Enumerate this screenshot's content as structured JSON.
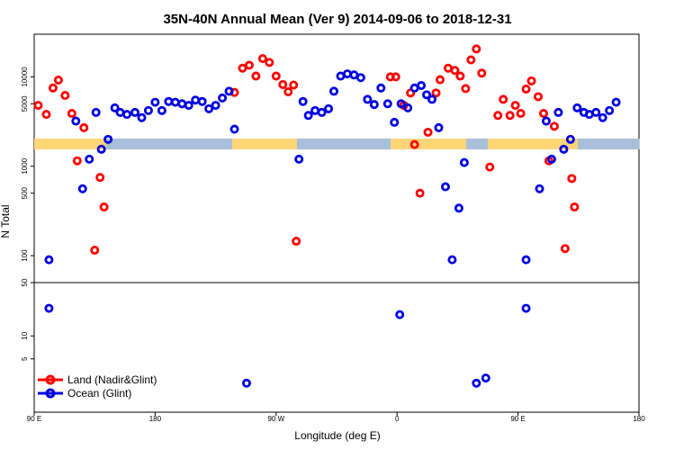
{
  "chart_data": {
    "type": "scatter",
    "title": "35N-40N Annual Mean (Ver 9)   2014-09-06 to 2018-12-31",
    "xlabel": "Longitude (deg E)",
    "ylabel": "N Total",
    "x_ticks": [
      {
        "value": 90,
        "label": "90 E"
      },
      {
        "value": 180,
        "label": "180"
      },
      {
        "value": 270,
        "label": "90 W"
      },
      {
        "value": 360,
        "label": "0"
      },
      {
        "value": 450,
        "label": "90 E"
      },
      {
        "value": 540,
        "label": "180"
      }
    ],
    "xlim": [
      90,
      540
    ],
    "y_ticks_upper": [
      "100",
      "500",
      "1000",
      "5000",
      "10000"
    ],
    "y_ticks_lower": [
      "5",
      "10",
      "50"
    ],
    "ylim_upper": [
      50,
      30000
    ],
    "ylim_lower": [
      1,
      50
    ],
    "land_mask_colors": {
      "land": "#FFD57A",
      "ocean": "#A8BFD9"
    },
    "legend": [
      {
        "name": "Land (Nadir&Glint)",
        "color": "#FF0000"
      },
      {
        "name": "Ocean (Glint)",
        "color": "#0000E0"
      }
    ],
    "series": [
      {
        "name": "Land (Nadir&Glint)",
        "color": "#FF0000",
        "points": [
          [
            93,
            4800
          ],
          [
            99,
            3800
          ],
          [
            104,
            7500
          ],
          [
            108,
            9200
          ],
          [
            113,
            6200
          ],
          [
            118,
            3900
          ],
          [
            122,
            1150
          ],
          [
            127,
            2700
          ],
          [
            135,
            115
          ],
          [
            139,
            750
          ],
          [
            142,
            350
          ],
          [
            239,
            6700
          ],
          [
            245,
            12500
          ],
          [
            250,
            13500
          ],
          [
            255,
            10200
          ],
          [
            260,
            16000
          ],
          [
            265,
            14500
          ],
          [
            270,
            10200
          ],
          [
            275,
            8200
          ],
          [
            279,
            6800
          ],
          [
            283,
            8100
          ],
          [
            285,
            145
          ],
          [
            355,
            10000
          ],
          [
            359,
            10000
          ],
          [
            365,
            4800
          ],
          [
            370,
            6600
          ],
          [
            373,
            1750
          ],
          [
            377,
            500
          ],
          [
            383,
            2400
          ],
          [
            389,
            6600
          ],
          [
            392,
            9300
          ],
          [
            398,
            12500
          ],
          [
            403,
            11800
          ],
          [
            407,
            10200
          ],
          [
            411,
            7400
          ],
          [
            415,
            15500
          ],
          [
            419,
            20500
          ],
          [
            423,
            11000
          ],
          [
            429,
            980
          ],
          [
            435,
            3700
          ],
          [
            439,
            5600
          ],
          [
            444,
            3700
          ],
          [
            448,
            4800
          ],
          [
            452,
            3900
          ],
          [
            456,
            7300
          ],
          [
            460,
            9000
          ],
          [
            465,
            6000
          ],
          [
            469,
            3900
          ],
          [
            473,
            1150
          ],
          [
            477,
            2800
          ],
          [
            485,
            120
          ],
          [
            490,
            730
          ],
          [
            492,
            350
          ]
        ]
      },
      {
        "name": "Ocean (Glint)",
        "color": "#0000E0",
        "points": [
          [
            101,
            90
          ],
          [
            121,
            3200
          ],
          [
            126,
            560
          ],
          [
            131,
            1200
          ],
          [
            136,
            4000
          ],
          [
            140,
            1550
          ],
          [
            145,
            2000
          ],
          [
            150,
            4500
          ],
          [
            154,
            4000
          ],
          [
            159,
            3800
          ],
          [
            165,
            4000
          ],
          [
            170,
            3500
          ],
          [
            175,
            4200
          ],
          [
            180,
            5200
          ],
          [
            185,
            4200
          ],
          [
            190,
            5300
          ],
          [
            195,
            5200
          ],
          [
            200,
            5000
          ],
          [
            205,
            4800
          ],
          [
            210,
            5500
          ],
          [
            215,
            5300
          ],
          [
            220,
            4400
          ],
          [
            225,
            4800
          ],
          [
            230,
            5800
          ],
          [
            235,
            6900
          ],
          [
            239,
            2600
          ],
          [
            287,
            1200
          ],
          [
            290,
            5300
          ],
          [
            294,
            3700
          ],
          [
            299,
            4200
          ],
          [
            304,
            4000
          ],
          [
            309,
            4400
          ],
          [
            313,
            6900
          ],
          [
            318,
            10200
          ],
          [
            323,
            10800
          ],
          [
            328,
            10500
          ],
          [
            333,
            9800
          ],
          [
            338,
            5600
          ],
          [
            343,
            4900
          ],
          [
            348,
            7500
          ],
          [
            353,
            5000
          ],
          [
            358,
            3100
          ],
          [
            363,
            5000
          ],
          [
            368,
            4500
          ],
          [
            373,
            7500
          ],
          [
            378,
            8000
          ],
          [
            382,
            6300
          ],
          [
            386,
            5600
          ],
          [
            391,
            2700
          ],
          [
            396,
            590
          ],
          [
            401,
            90
          ],
          [
            406,
            340
          ],
          [
            410,
            1100
          ],
          [
            456,
            90
          ],
          [
            466,
            560
          ],
          [
            471,
            3200
          ],
          [
            475,
            1200
          ],
          [
            480,
            4000
          ],
          [
            484,
            1550
          ],
          [
            489,
            2000
          ],
          [
            494,
            4500
          ],
          [
            499,
            4000
          ],
          [
            503,
            3800
          ],
          [
            508,
            4000
          ],
          [
            513,
            3500
          ],
          [
            518,
            4200
          ],
          [
            523,
            5200
          ]
        ]
      },
      {
        "name": "Ocean (Glint) low",
        "color": "#0000E0",
        "lower": true,
        "points": [
          [
            101,
            23
          ],
          [
            248,
            2.4
          ],
          [
            362,
            19
          ],
          [
            419,
            2.4
          ],
          [
            426,
            2.8
          ],
          [
            456,
            23
          ]
        ]
      }
    ]
  }
}
